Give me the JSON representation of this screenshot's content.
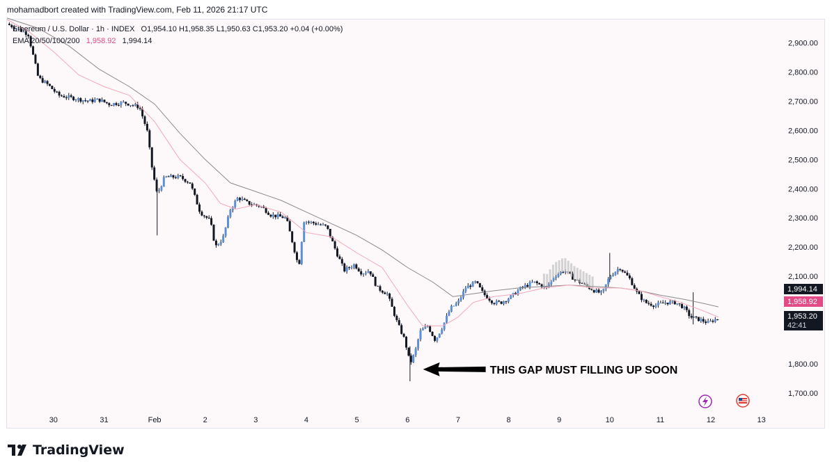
{
  "credit": "mohamadbort created with TradingView.com, Feb 11, 2026 21:17 UTC",
  "legend": {
    "title": "Ethereum / U.S. Dollar · 1h · INDEX",
    "ohlc": "O1,954.10  H1,958.35  L1,950.63  C1,953.20  +0.04 (+0.00%)",
    "ema_label": "EMA 20/50/100/200",
    "ema_value_1": "1,958.92",
    "ema_value_2": "1,994.14"
  },
  "logo": {
    "text": "TradingView"
  },
  "colors": {
    "up": "#5b8fd6",
    "down": "#131722",
    "ema_fast": "#f4a7b9",
    "ema_slow": "#8a8a8a",
    "ema_badge": "#e24b86",
    "dark_badge": "#131722"
  },
  "chart_data": {
    "type": "candlestick",
    "title": "Ethereum / U.S. Dollar · 1h · INDEX",
    "ylim": [
      1640,
      2980
    ],
    "y_ticks": [
      1700,
      1800,
      2100,
      2200,
      2300,
      2400,
      2500,
      2600,
      2700,
      2800,
      2900
    ],
    "y_tick_labels": [
      "1,700.00",
      "1,800.00",
      "2,100.00",
      "2,200.00",
      "2,300.00",
      "2,400.00",
      "2,500.00",
      "2,600.00",
      "2,700.00",
      "2,800.00",
      "2,900.00"
    ],
    "x_ticks": [
      {
        "label": "30",
        "day": 0
      },
      {
        "label": "31",
        "day": 1
      },
      {
        "label": "Feb",
        "day": 2
      },
      {
        "label": "2",
        "day": 3
      },
      {
        "label": "3",
        "day": 4
      },
      {
        "label": "4",
        "day": 5
      },
      {
        "label": "5",
        "day": 6
      },
      {
        "label": "6",
        "day": 7
      },
      {
        "label": "7",
        "day": 8
      },
      {
        "label": "8",
        "day": 9
      },
      {
        "label": "9",
        "day": 10
      },
      {
        "label": "10",
        "day": 11
      },
      {
        "label": "11",
        "day": 12
      },
      {
        "label": "12",
        "day": 13
      },
      {
        "label": "13",
        "day": 14
      }
    ],
    "day_range": [
      -0.92,
      14.5
    ],
    "price_path": [
      [
        -0.92,
        2965
      ],
      [
        -0.5,
        2930
      ],
      [
        -0.3,
        2780
      ],
      [
        -0.1,
        2755
      ],
      [
        0.1,
        2720
      ],
      [
        0.4,
        2710
      ],
      [
        0.7,
        2700
      ],
      [
        0.9,
        2705
      ],
      [
        1.1,
        2690
      ],
      [
        1.4,
        2695
      ],
      [
        1.7,
        2680
      ],
      [
        1.85,
        2600
      ],
      [
        1.95,
        2470
      ],
      [
        2.05,
        2380
      ],
      [
        2.2,
        2440
      ],
      [
        2.5,
        2440
      ],
      [
        2.7,
        2420
      ],
      [
        2.9,
        2320
      ],
      [
        3.1,
        2290
      ],
      [
        3.2,
        2200
      ],
      [
        3.35,
        2230
      ],
      [
        3.5,
        2330
      ],
      [
        3.65,
        2370
      ],
      [
        3.85,
        2350
      ],
      [
        4.1,
        2340
      ],
      [
        4.3,
        2310
      ],
      [
        4.6,
        2300
      ],
      [
        4.75,
        2200
      ],
      [
        4.85,
        2130
      ],
      [
        4.95,
        2290
      ],
      [
        5.2,
        2280
      ],
      [
        5.4,
        2270
      ],
      [
        5.6,
        2180
      ],
      [
        5.75,
        2120
      ],
      [
        5.95,
        2140
      ],
      [
        6.1,
        2110
      ],
      [
        6.25,
        2120
      ],
      [
        6.4,
        2060
      ],
      [
        6.6,
        2040
      ],
      [
        6.8,
        1940
      ],
      [
        6.95,
        1880
      ],
      [
        7.05,
        1800
      ],
      [
        7.15,
        1840
      ],
      [
        7.25,
        1910
      ],
      [
        7.4,
        1930
      ],
      [
        7.55,
        1880
      ],
      [
        7.7,
        1930
      ],
      [
        7.85,
        1990
      ],
      [
        8.0,
        2010
      ],
      [
        8.15,
        2060
      ],
      [
        8.35,
        2080
      ],
      [
        8.5,
        2040
      ],
      [
        8.7,
        2010
      ],
      [
        8.85,
        2010
      ],
      [
        9.05,
        2030
      ],
      [
        9.25,
        2060
      ],
      [
        9.5,
        2080
      ],
      [
        9.75,
        2060
      ],
      [
        9.9,
        2100
      ],
      [
        10.1,
        2120
      ],
      [
        10.3,
        2090
      ],
      [
        10.5,
        2070
      ],
      [
        10.7,
        2050
      ],
      [
        10.85,
        2040
      ],
      [
        11.0,
        2100
      ],
      [
        11.2,
        2130
      ],
      [
        11.4,
        2090
      ],
      [
        11.55,
        2040
      ],
      [
        11.7,
        2010
      ],
      [
        11.9,
        2000
      ],
      [
        12.1,
        2010
      ],
      [
        12.3,
        2010
      ],
      [
        12.45,
        1995
      ],
      [
        12.6,
        1960
      ],
      [
        12.8,
        1950
      ],
      [
        12.95,
        1940
      ],
      [
        13.05,
        1950
      ],
      [
        13.15,
        1955
      ]
    ],
    "ema_fast_path": [
      [
        -0.92,
        2980
      ],
      [
        -0.5,
        2940
      ],
      [
        0.0,
        2870
      ],
      [
        0.5,
        2790
      ],
      [
        1.0,
        2750
      ],
      [
        1.5,
        2720
      ],
      [
        2.0,
        2630
      ],
      [
        2.5,
        2500
      ],
      [
        3.0,
        2420
      ],
      [
        3.3,
        2350
      ],
      [
        3.6,
        2330
      ],
      [
        4.0,
        2345
      ],
      [
        4.5,
        2320
      ],
      [
        5.0,
        2250
      ],
      [
        5.5,
        2235
      ],
      [
        6.0,
        2180
      ],
      [
        6.5,
        2130
      ],
      [
        7.0,
        2000
      ],
      [
        7.3,
        1930
      ],
      [
        7.7,
        1930
      ],
      [
        8.0,
        1960
      ],
      [
        8.3,
        2010
      ],
      [
        8.7,
        2030
      ],
      [
        9.2,
        2040
      ],
      [
        9.7,
        2060
      ],
      [
        10.2,
        2070
      ],
      [
        10.7,
        2060
      ],
      [
        11.2,
        2060
      ],
      [
        11.6,
        2050
      ],
      [
        12.0,
        2030
      ],
      [
        12.4,
        2010
      ],
      [
        12.8,
        1985
      ],
      [
        13.15,
        1960
      ]
    ],
    "ema_slow_path": [
      [
        -0.92,
        2985
      ],
      [
        -0.3,
        2950
      ],
      [
        0.3,
        2890
      ],
      [
        0.9,
        2810
      ],
      [
        1.5,
        2750
      ],
      [
        2.0,
        2690
      ],
      [
        2.5,
        2590
      ],
      [
        3.0,
        2500
      ],
      [
        3.5,
        2420
      ],
      [
        4.0,
        2390
      ],
      [
        4.5,
        2360
      ],
      [
        5.0,
        2320
      ],
      [
        5.5,
        2280
      ],
      [
        6.0,
        2240
      ],
      [
        6.5,
        2190
      ],
      [
        7.0,
        2130
      ],
      [
        7.5,
        2080
      ],
      [
        7.9,
        2030
      ],
      [
        8.3,
        2040
      ],
      [
        8.7,
        2050
      ],
      [
        9.2,
        2060
      ],
      [
        9.7,
        2065
      ],
      [
        10.2,
        2070
      ],
      [
        10.7,
        2065
      ],
      [
        11.2,
        2060
      ],
      [
        11.6,
        2050
      ],
      [
        12.0,
        2035
      ],
      [
        12.5,
        2020
      ],
      [
        12.9,
        2005
      ],
      [
        13.15,
        1995
      ]
    ],
    "price_badges": [
      {
        "label": "1,994.14",
        "value": 1994.14,
        "style": "dark"
      },
      {
        "label": "1,958.92",
        "value": 1958.92,
        "style": "pink"
      },
      {
        "label": "1,953.20",
        "sub": "42:41",
        "value": 1953.2,
        "style": "dark"
      }
    ],
    "annotation": {
      "text": "THIS GAP MUST FILLING UP SOON",
      "arrow_to_day": 7.17,
      "arrow_to_price": 1800
    },
    "ghost_bars_range": [
      9.7,
      10.7
    ]
  }
}
